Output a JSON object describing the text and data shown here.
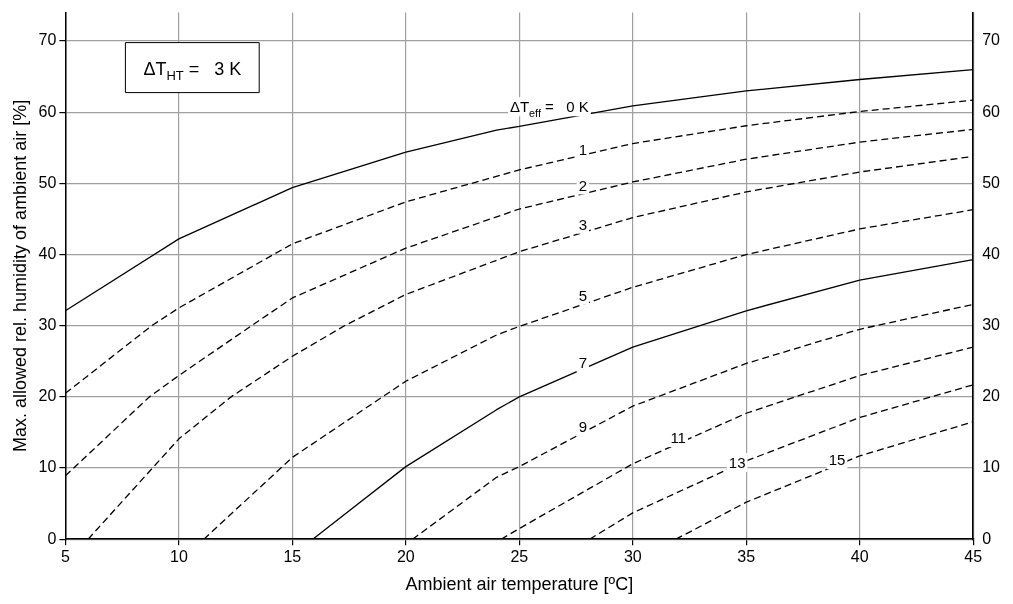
{
  "chart_data": {
    "type": "line",
    "xlabel": "Ambient air temperature [ºC]",
    "ylabel": "Max. allowed rel. humidity of ambient air [%]",
    "xlim": [
      5,
      45
    ],
    "xticks": [
      5,
      10,
      15,
      20,
      25,
      30,
      35,
      40,
      45
    ],
    "ylim": [
      0,
      74
    ],
    "yticks": [
      0,
      10,
      20,
      30,
      40,
      50,
      60,
      70
    ],
    "y2lim": [
      0,
      74
    ],
    "y2ticks": [
      0,
      10,
      20,
      30,
      40,
      50,
      60,
      70
    ],
    "grid": true,
    "legend": false,
    "marker": "none",
    "series": [
      {
        "color": "#000000",
        "line_style": "solid",
        "x": [
          5,
          10,
          15,
          20,
          24,
          25,
          30,
          35,
          40,
          45
        ],
        "values": [
          32.1,
          42.2,
          49.4,
          54.4,
          57.5,
          58.0,
          60.9,
          63.0,
          64.6,
          66.0
        ]
      },
      {
        "color": "#000000",
        "line_style": "dashed",
        "x": [
          5,
          8.8,
          10,
          15,
          20,
          25,
          30,
          35,
          40,
          45
        ],
        "values": [
          20.5,
          30,
          32.5,
          41.5,
          47.4,
          51.9,
          55.6,
          58.1,
          60.1,
          61.7
        ]
      },
      {
        "color": "#000000",
        "line_style": "dashed",
        "x": [
          5,
          8.7,
          10,
          13.2,
          15,
          20,
          25,
          30,
          35,
          40,
          45
        ],
        "values": [
          8.9,
          20,
          23,
          30,
          33.9,
          40.9,
          46.4,
          50.2,
          53.4,
          55.8,
          57.6
        ]
      },
      {
        "color": "#000000",
        "line_style": "dashed",
        "x": [
          6,
          10,
          12.3,
          15,
          17.3,
          20,
          25,
          30,
          35,
          40,
          45
        ],
        "values": [
          0,
          14.1,
          20,
          25.7,
          30,
          34.4,
          40.4,
          45.2,
          48.8,
          51.6,
          53.8
        ]
      },
      {
        "color": "#000000",
        "line_style": "dashed",
        "x": [
          11.1,
          15,
          20,
          24,
          25,
          30,
          35,
          40,
          45
        ],
        "values": [
          0,
          11.5,
          22.2,
          28.7,
          29.9,
          35.4,
          40,
          43.6,
          46.3
        ]
      },
      {
        "color": "#000000",
        "line_style": "solid",
        "x": [
          15.9,
          20,
          24,
          25,
          30,
          35,
          40,
          45
        ],
        "values": [
          0,
          10.2,
          18.2,
          20,
          27,
          32.1,
          36.4,
          39.3
        ]
      },
      {
        "color": "#000000",
        "line_style": "dashed",
        "x": [
          20.3,
          24,
          25,
          30,
          35,
          40,
          45
        ],
        "values": [
          0,
          8.7,
          10.2,
          18.7,
          24.7,
          29.5,
          33
        ]
      },
      {
        "color": "#000000",
        "line_style": "dashed",
        "x": [
          24.2,
          25,
          30,
          35,
          40,
          45
        ],
        "values": [
          0,
          1.5,
          10.6,
          17.7,
          23,
          27
        ]
      },
      {
        "color": "#000000",
        "line_style": "dashed",
        "x": [
          28.1,
          30,
          35,
          40,
          45
        ],
        "values": [
          0,
          3.7,
          11,
          17.1,
          21.7
        ]
      },
      {
        "color": "#000000",
        "line_style": "dashed",
        "x": [
          31.9,
          35,
          40,
          45
        ],
        "values": [
          0,
          5.2,
          11.7,
          16.5
        ]
      }
    ],
    "annotations": [
      "ΔT$_{HT}$ =   3 K",
      {
        "text": "ΔT$_{eff}$ =   0 K",
        "x": 27.8,
        "y": 60
      },
      {
        "text": "1",
        "x": 27.8,
        "y": 54
      },
      {
        "text": "2",
        "x": 27.8,
        "y": 49
      },
      {
        "text": "3",
        "x": 27.8,
        "y": 43.5
      },
      {
        "text": "5",
        "x": 27.8,
        "y": 33.5
      },
      {
        "text": "7",
        "x": 27.8,
        "y": 24
      },
      {
        "text": "9",
        "x": 27.8,
        "y": 15
      },
      {
        "text": "11",
        "x": 32,
        "y": 13.5
      },
      {
        "text": "13",
        "x": 34.6,
        "y": 10
      },
      {
        "text": "15",
        "x": 39,
        "y": 10.4
      }
    ]
  }
}
